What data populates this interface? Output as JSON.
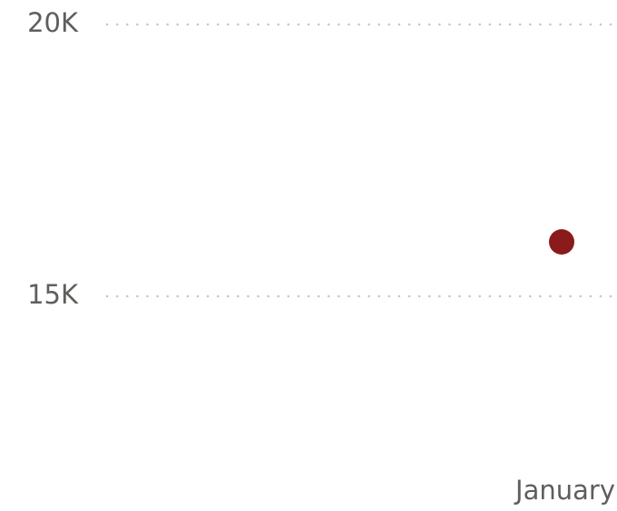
{
  "chart_data": {
    "type": "line",
    "categories": [
      "January"
    ],
    "series": [
      {
        "name": null,
        "color": "#8b1a1a",
        "values": [
          16000
        ]
      }
    ],
    "ylim": [
      12500,
      20000
    ],
    "yticks": [
      {
        "value": 20000,
        "label": "20K"
      },
      {
        "value": 15000,
        "label": "15K"
      }
    ],
    "grid": true
  }
}
